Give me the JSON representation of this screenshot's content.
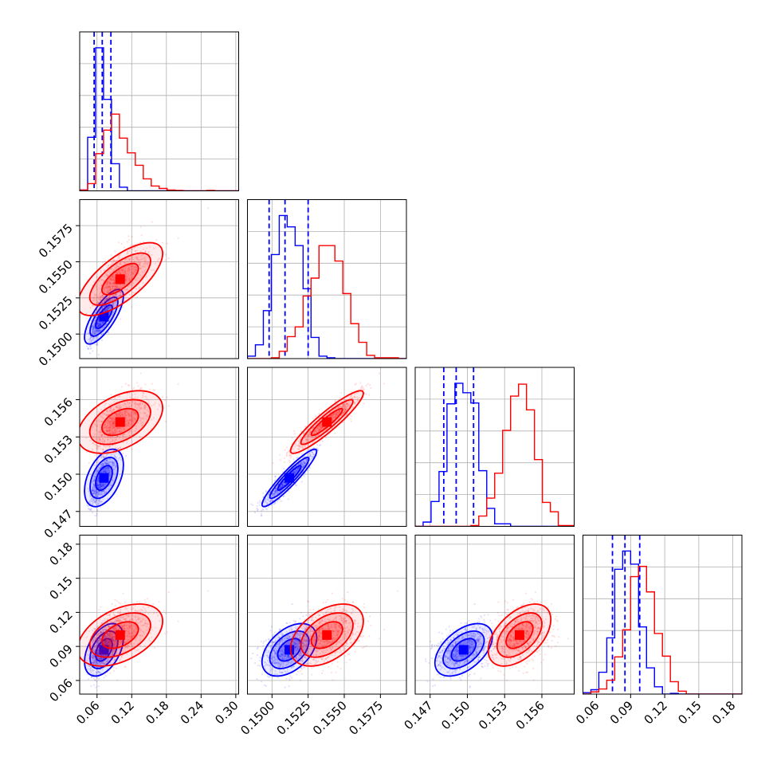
{
  "chart_data": {
    "type": "corner",
    "grid": true,
    "series": [
      {
        "color": "#0000ff",
        "mean": [
          0.072,
          0.1512,
          0.1497,
          0.087
        ],
        "sd": [
          0.016,
          0.0009,
          0.0011,
          0.011
        ],
        "corr": [
          [
            1,
            0.75,
            0.45,
            0.45
          ],
          [
            0.75,
            1,
            0.93,
            0.45
          ],
          [
            0.45,
            0.93,
            1,
            0.5
          ],
          [
            0.45,
            0.45,
            0.5,
            1
          ]
        ],
        "quantile_lines": [
          [
            0.055,
            0.069,
            0.084
          ],
          [
            0.1498,
            0.1509,
            0.1525
          ],
          [
            0.1481,
            0.1491,
            0.1505
          ],
          [
            0.074,
            0.085,
            0.098
          ]
        ]
      },
      {
        "color": "#ff0000",
        "mean": [
          0.1,
          0.1538,
          0.1542,
          0.1
        ],
        "sd": [
          0.035,
          0.0012,
          0.0012,
          0.013
        ],
        "corr": [
          [
            1,
            0.7,
            0.45,
            0.45
          ],
          [
            0.7,
            1,
            0.92,
            0.45
          ],
          [
            0.45,
            0.92,
            1,
            0.5
          ],
          [
            0.45,
            0.45,
            0.5,
            1
          ]
        ]
      }
    ],
    "axes": [
      {
        "range": [
          0.03,
          0.305
        ],
        "ticks": [
          "0.06",
          "0.12",
          "0.18",
          "0.24",
          "0.30"
        ]
      },
      {
        "range": [
          0.1483,
          0.1593
        ],
        "ticks": [
          "0.1500",
          "0.1525",
          "0.1550",
          "0.1575"
        ]
      },
      {
        "range": [
          0.1458,
          0.1586
        ],
        "ticks": [
          "0.147",
          "0.150",
          "0.153",
          "0.156"
        ]
      },
      {
        "range": [
          0.048,
          0.188
        ],
        "ticks": [
          "0.06",
          "0.09",
          "0.12",
          "0.15",
          "0.18"
        ]
      }
    ],
    "ytick_rows": [
      {
        "row": 1,
        "ticks": [
          "0.1500",
          "0.1525",
          "0.1550",
          "0.1575"
        ]
      },
      {
        "row": 2,
        "ticks": [
          "0.147",
          "0.150",
          "0.153",
          "0.156"
        ]
      },
      {
        "row": 3,
        "ticks": [
          "0.06",
          "0.09",
          "0.12",
          "0.15",
          "0.18"
        ]
      }
    ]
  }
}
